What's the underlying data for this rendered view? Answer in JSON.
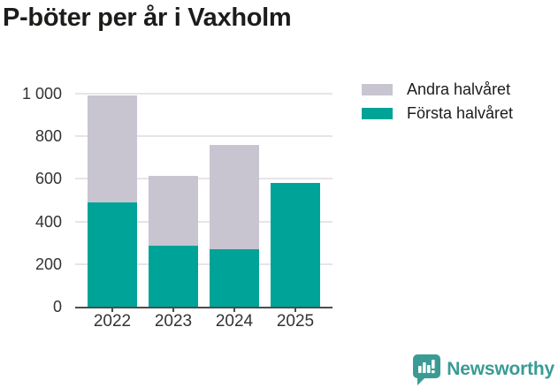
{
  "title": "P-böter per år i Vaxholm",
  "colors": {
    "first_half": "#00a398",
    "second_half": "#c8c5d1",
    "grid": "#e6e4e9",
    "axis": "#4d4d4d",
    "brand": "#3a9b95"
  },
  "legend": {
    "items": [
      {
        "label": "Andra halvåret",
        "color": "#c8c5d1"
      },
      {
        "label": "Första halvåret",
        "color": "#00a398"
      }
    ]
  },
  "chart_data": {
    "type": "bar",
    "stacked": true,
    "title": "P-böter per år i Vaxholm",
    "categories": [
      "2022",
      "2023",
      "2024",
      "2025"
    ],
    "series": [
      {
        "name": "Första halvåret",
        "color": "#00a398",
        "values": [
          490,
          285,
          270,
          580
        ]
      },
      {
        "name": "Andra halvåret",
        "color": "#c8c5d1",
        "values": [
          500,
          330,
          490,
          0
        ]
      }
    ],
    "totals": [
      990,
      615,
      760,
      580
    ],
    "xlabel": "",
    "ylabel": "",
    "ylim": [
      0,
      1000
    ],
    "yticks": [
      0,
      200,
      400,
      600,
      800,
      1000
    ],
    "ytick_labels": [
      "0",
      "200",
      "400",
      "600",
      "800",
      "1 000"
    ],
    "grid": "horizontal",
    "legend_position": "top-right"
  },
  "brand": {
    "name": "Newsworthy"
  }
}
